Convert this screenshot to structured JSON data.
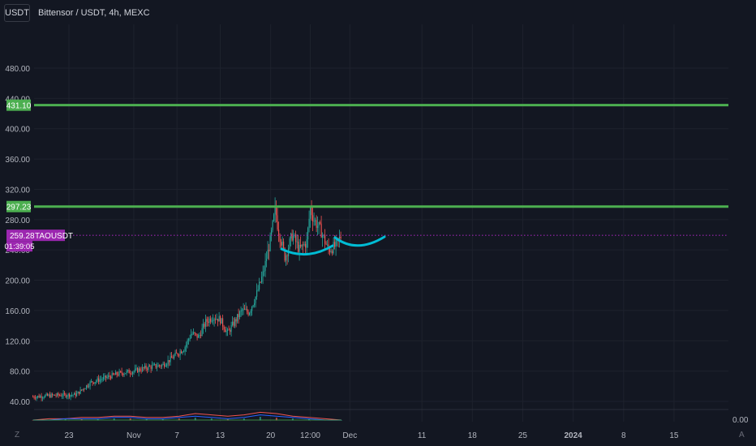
{
  "header": {
    "currency_badge": "USDT",
    "title": "Bittensor / USDT, 4h, MEXC"
  },
  "corner_labels": {
    "left": "Z",
    "right": "A"
  },
  "colors": {
    "background": "#131722",
    "grid": "#1e222d",
    "text": "#b2b5be",
    "up": "#26a69a",
    "down": "#ef5350",
    "level_line": "#4caf50",
    "current_price": "#9c27b0",
    "drawing": "#00bcd4"
  },
  "chart_data": {
    "type": "candlestick",
    "symbol": "TAOUSDT",
    "timeframe": "4h",
    "y_ticks": [
      40,
      80,
      120,
      160,
      200,
      240,
      280,
      320,
      360,
      400,
      440,
      480
    ],
    "y_tick_labels": [
      "40.00",
      "80.00",
      "120.00",
      "160.00",
      "200.00",
      "240.00",
      "280.00",
      "320.00",
      "360.00",
      "400.00",
      "440.00",
      "480.00"
    ],
    "ylim": [
      19,
      500
    ],
    "x_tick_labels": [
      "23",
      "Nov",
      "7",
      "13",
      "20",
      "12:00",
      "Dec",
      "11",
      "18",
      "25",
      "2024",
      "8",
      "15"
    ],
    "x_tick_dates": [
      "2023-10-23",
      "2023-11-01",
      "2023-11-07",
      "2023-11-13",
      "2023-11-20",
      "2023-11-25 12:00",
      "2023-12-01",
      "2023-12-11",
      "2023-12-18",
      "2023-12-25",
      "2024-01-01",
      "2024-01-08",
      "2024-01-15"
    ],
    "horizontal_levels": [
      {
        "value": 431.1,
        "label": "431.10"
      },
      {
        "value": 297.23,
        "label": "297.23"
      }
    ],
    "current_price": {
      "value": 259.28,
      "label": "259.28",
      "symbol_label": "TAOUSDT",
      "countdown": "01:39:05"
    },
    "price_path": [
      [
        "2023-10-18",
        46
      ],
      [
        "2023-10-21",
        48
      ],
      [
        "2023-10-24",
        49
      ],
      [
        "2023-10-26",
        65
      ],
      [
        "2023-10-28",
        71
      ],
      [
        "2023-10-30",
        77
      ],
      [
        "2023-11-01",
        80
      ],
      [
        "2023-11-03",
        85
      ],
      [
        "2023-11-05",
        88
      ],
      [
        "2023-11-06",
        95
      ],
      [
        "2023-11-08",
        110
      ],
      [
        "2023-11-09",
        130
      ],
      [
        "2023-11-10",
        125
      ],
      [
        "2023-11-11",
        145
      ],
      [
        "2023-11-12",
        152
      ],
      [
        "2023-11-13",
        148
      ],
      [
        "2023-11-14",
        130
      ],
      [
        "2023-11-15",
        145
      ],
      [
        "2023-11-16",
        160
      ],
      [
        "2023-11-17",
        158
      ],
      [
        "2023-11-18",
        180
      ],
      [
        "2023-11-19",
        210
      ],
      [
        "2023-11-20",
        255
      ],
      [
        "2023-11-20 16:00",
        295
      ],
      [
        "2023-11-21",
        270
      ],
      [
        "2023-11-22",
        230
      ],
      [
        "2023-11-23",
        260
      ],
      [
        "2023-11-24",
        240
      ],
      [
        "2023-11-25",
        250
      ],
      [
        "2023-11-25 12:00",
        295
      ],
      [
        "2023-11-26",
        280
      ],
      [
        "2023-11-27",
        265
      ],
      [
        "2023-11-28",
        240
      ],
      [
        "2023-11-29",
        245
      ],
      [
        "2023-11-29 20:00",
        259.28
      ]
    ],
    "indicator": {
      "zero_label": "0.00",
      "series_a": [
        0,
        0,
        1,
        1,
        1,
        2,
        2,
        1,
        1,
        2,
        3,
        2,
        1,
        2,
        4,
        3,
        2,
        1,
        0,
        0
      ],
      "series_b": [
        0,
        1,
        1,
        2,
        2,
        3,
        3,
        2,
        2,
        3,
        5,
        4,
        3,
        4,
        6,
        5,
        3,
        2,
        1,
        0
      ]
    }
  }
}
